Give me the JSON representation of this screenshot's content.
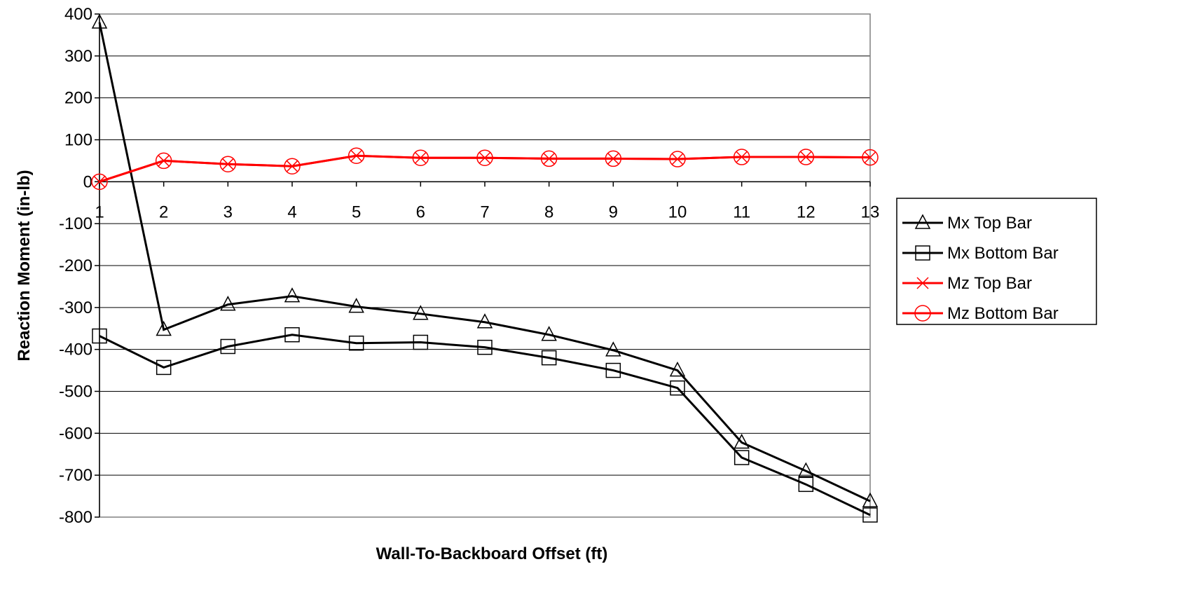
{
  "chart_data": {
    "type": "line",
    "xlabel": "Wall-To-Backboard Offset (ft)",
    "ylabel": "Reaction Moment (in-lb)",
    "categories": [
      "1",
      "2",
      "3",
      "4",
      "5",
      "6",
      "7",
      "8",
      "9",
      "10",
      "11",
      "12",
      "13"
    ],
    "ylim": [
      -800,
      400
    ],
    "yticks": [
      400,
      300,
      200,
      100,
      0,
      -100,
      -200,
      -300,
      -400,
      -500,
      -600,
      -700,
      -800
    ],
    "grid": "horizontal",
    "legend_position": "right",
    "series": [
      {
        "name": "Mx Top Bar",
        "color": "#000000",
        "marker": "triangle",
        "values": [
          380,
          -353,
          -293,
          -273,
          -298,
          -315,
          -335,
          -365,
          -402,
          -450,
          -622,
          -690,
          -762
        ]
      },
      {
        "name": "Mx Bottom Bar",
        "color": "#000000",
        "marker": "square",
        "values": [
          -368,
          -443,
          -393,
          -365,
          -385,
          -383,
          -395,
          -420,
          -450,
          -492,
          -658,
          -722,
          -795
        ]
      },
      {
        "name": "Mz Top Bar",
        "color": "#ff0000",
        "marker": "x",
        "values": [
          0,
          50,
          42,
          37,
          62,
          57,
          57,
          55,
          55,
          54,
          59,
          59,
          58
        ]
      },
      {
        "name": "Mz Bottom Bar",
        "color": "#ff0000",
        "marker": "circle",
        "values": [
          0,
          50,
          42,
          37,
          62,
          57,
          57,
          55,
          55,
          54,
          59,
          59,
          58
        ]
      }
    ]
  }
}
